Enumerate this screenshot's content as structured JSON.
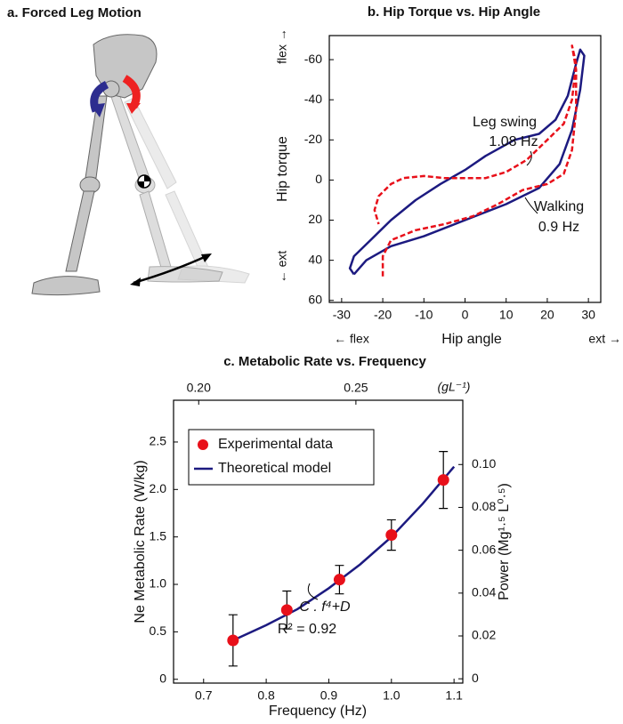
{
  "panel_a": {
    "title": "a. Forced Leg Motion"
  },
  "chart_data": [
    {
      "type": "line",
      "title": "b. Hip Torque vs. Hip Angle",
      "xlabel": "Hip angle",
      "xlabel_ends": [
        "← flex",
        "ext →"
      ],
      "ylabel": "Hip torque",
      "ylabel_ends": [
        "← ext",
        "flex →"
      ],
      "xlim": [
        -33,
        33
      ],
      "xticks": [
        -30,
        -20,
        -10,
        0,
        10,
        20,
        30
      ],
      "ylim": [
        61,
        -72
      ],
      "yticks": [
        -60,
        -40,
        -20,
        0,
        20,
        40,
        60
      ],
      "series": [
        {
          "name": "Leg swing",
          "frequency": "1.08 Hz",
          "color": "#1c1a80",
          "linestyle": "solid",
          "x": [
            -27,
            -24,
            -18,
            -10,
            0,
            10,
            18,
            23,
            26,
            28,
            29,
            28,
            27,
            25,
            22,
            18,
            12,
            5,
            0,
            -6,
            -12,
            -18,
            -23,
            -27,
            -28,
            -27
          ],
          "values": [
            47,
            40,
            33,
            28,
            20,
            12,
            4,
            -8,
            -25,
            -45,
            -62,
            -65,
            -58,
            -42,
            -30,
            -23,
            -20,
            -12,
            -5,
            2,
            10,
            20,
            30,
            38,
            44,
            47
          ]
        },
        {
          "name": "Walking",
          "frequency": "0.9 Hz",
          "color": "#e8101a",
          "linestyle": "dashed",
          "x": [
            -20,
            -20,
            -18,
            -12,
            -5,
            2,
            8,
            14,
            20,
            24,
            26,
            27,
            27,
            26,
            27,
            26,
            24,
            20,
            15,
            10,
            5,
            0,
            -5,
            -10,
            -15,
            -18,
            -21,
            -22,
            -21
          ],
          "values": [
            48,
            38,
            30,
            25,
            22,
            18,
            12,
            5,
            2,
            -3,
            -15,
            -35,
            -55,
            -67,
            -58,
            -40,
            -28,
            -20,
            -10,
            -4,
            -1,
            -1,
            -1,
            -2,
            -1,
            2,
            8,
            15,
            22
          ]
        }
      ]
    },
    {
      "type": "scatter",
      "title": "c. Metabolic Rate vs. Frequency",
      "xlabel": "Frequency (Hz)",
      "ylabel": "Ne Metabolic Rate (W/kg)",
      "x2label": "(gL⁻¹)",
      "y2label": "Power (Mg¹·⁵ L⁰·⁵)",
      "xlim": [
        0.652,
        1.114
      ],
      "xticks": [
        0.7,
        0.8,
        0.9,
        {
          "value": 1,
          "label": "1.0"
        },
        1.1
      ],
      "ylim": [
        -0.04,
        2.94
      ],
      "yticks": [
        0,
        0.5,
        {
          "value": 1,
          "label": "1.0"
        },
        1.5,
        {
          "value": 2,
          "label": "2.0"
        },
        2.5
      ],
      "x2lim": [
        0.192,
        0.284
      ],
      "x2ticks": [
        {
          "value": 0.2,
          "label": "0.20"
        },
        {
          "value": 0.25,
          "label": "0.25"
        }
      ],
      "y2lim": [
        -0.002,
        0.13
      ],
      "y2ticks": [
        0,
        0.02,
        0.04,
        0.06,
        0.08,
        {
          "value": 0.1,
          "label": "0.10"
        }
      ],
      "legend": "upper left",
      "annotations": [
        "C . f⁴+D",
        "R² = 0.92"
      ],
      "series": [
        {
          "name": "Experimental data",
          "color": "#e8101a",
          "style": "markers",
          "x": [
            0.747,
            0.833,
            0.917,
            1.0,
            1.083
          ],
          "values": [
            0.41,
            0.73,
            1.05,
            1.52,
            2.1
          ],
          "errors": [
            0.27,
            0.2,
            0.15,
            0.16,
            0.3
          ]
        },
        {
          "name": "Theoretical model",
          "color": "#1c1a80",
          "style": "line",
          "x": [
            0.747,
            0.8,
            0.85,
            0.9,
            0.95,
            1.0,
            1.05,
            1.1
          ],
          "values": [
            0.41,
            0.57,
            0.74,
            0.96,
            1.21,
            1.5,
            1.85,
            2.24
          ]
        }
      ]
    }
  ]
}
